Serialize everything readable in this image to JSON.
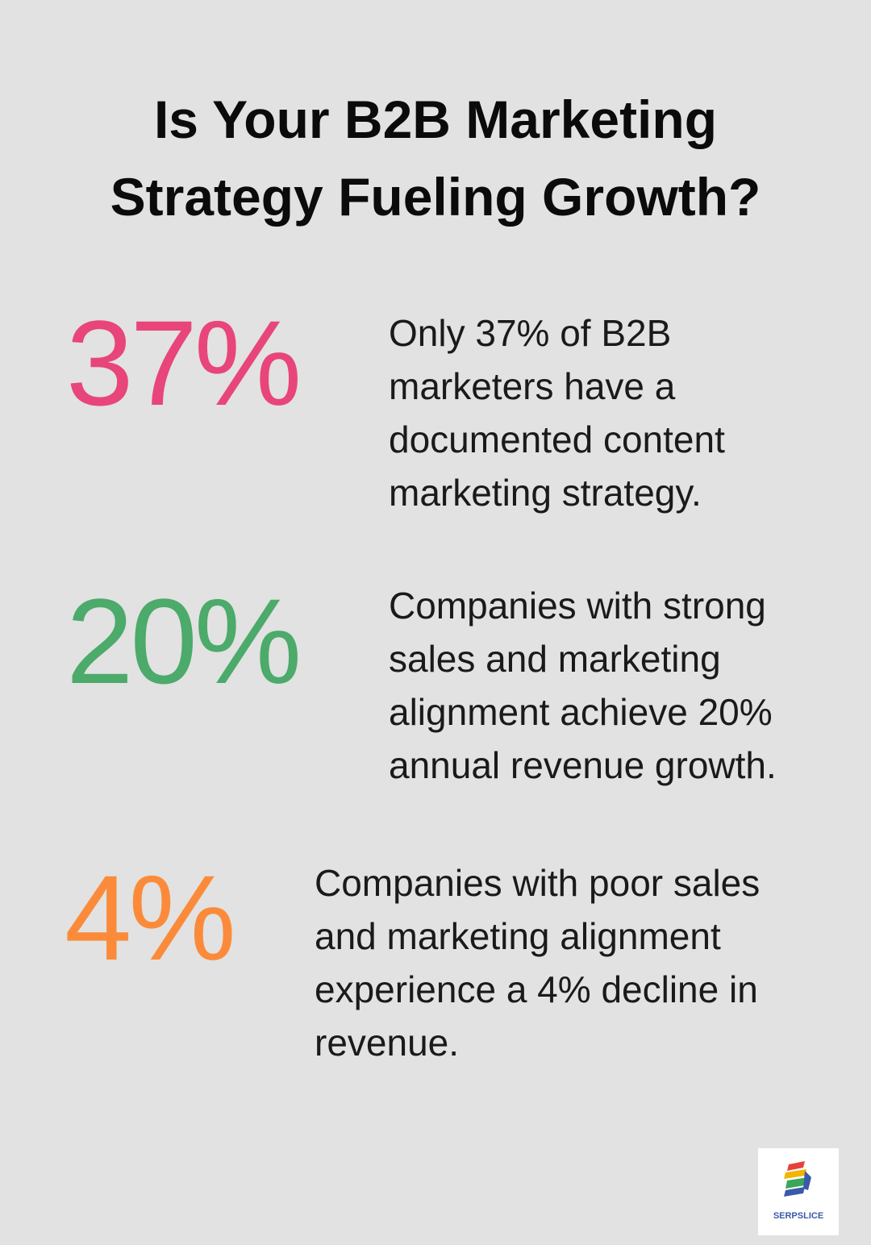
{
  "header": {
    "title_lines": [
      "Is Your B2B Marketing",
      "Strategy Fueling Growth?"
    ]
  },
  "stats": [
    {
      "figure": "37%",
      "color": "#e8457a",
      "lines": [
        "Only 37% of B2B",
        "marketers have a",
        "documented content",
        "marketing strategy."
      ]
    },
    {
      "figure": "20%",
      "color": "#4caa6b",
      "lines": [
        "Companies with strong",
        "sales and marketing",
        "alignment achieve 20%",
        "annual revenue growth."
      ]
    },
    {
      "figure": "4%",
      "color": "#fb8b3a",
      "lines": [
        "Companies with poor sales",
        "and marketing alignment",
        "experience a 4% decline in",
        "revenue."
      ]
    }
  ],
  "logo": {
    "text": "SERPSLICE"
  }
}
